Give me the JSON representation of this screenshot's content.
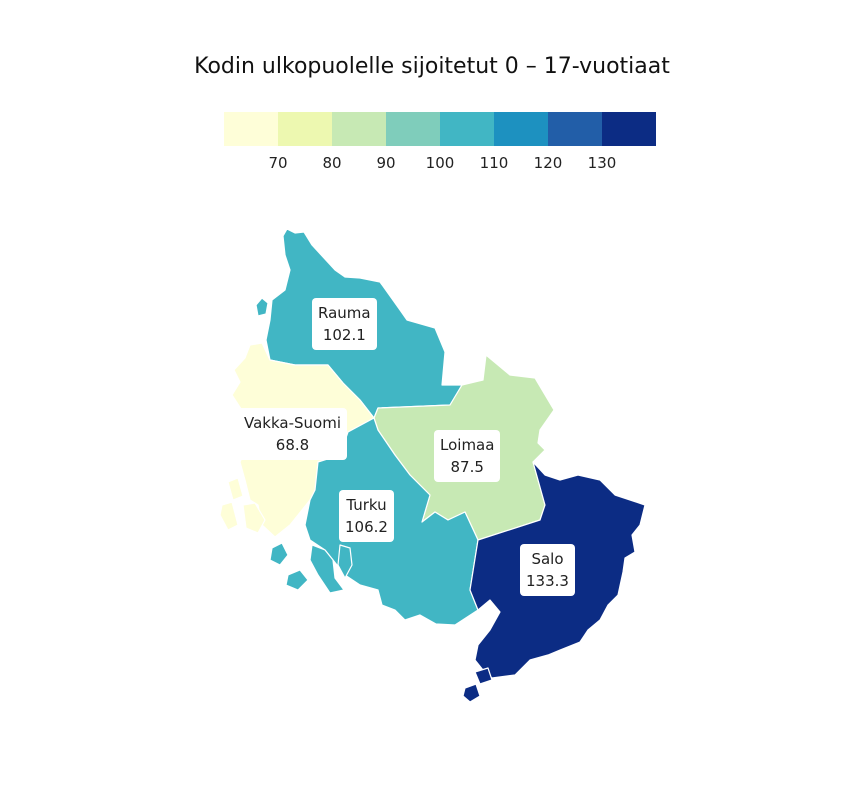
{
  "title": "Kodin ulkopuolelle sijoitetut 0 – 17-vuotiaat",
  "legend": {
    "colors": [
      "#fefed8",
      "#edf8b0",
      "#c7e9b4",
      "#7fcdbb",
      "#41b6c4",
      "#1d91c0",
      "#225ea8",
      "#0c2c84"
    ],
    "ticks": [
      "70",
      "80",
      "90",
      "100",
      "110",
      "120",
      "130"
    ]
  },
  "regions": [
    {
      "name": "Rauma",
      "value": "102.1",
      "color": "#41b6c4"
    },
    {
      "name": "Vakka-Suomi",
      "value": "68.8",
      "color": "#fefed8"
    },
    {
      "name": "Loimaa",
      "value": "87.5",
      "color": "#c7e9b4"
    },
    {
      "name": "Turku",
      "value": "106.2",
      "color": "#41b6c4"
    },
    {
      "name": "Salo",
      "value": "133.3",
      "color": "#0c2c84"
    }
  ]
}
